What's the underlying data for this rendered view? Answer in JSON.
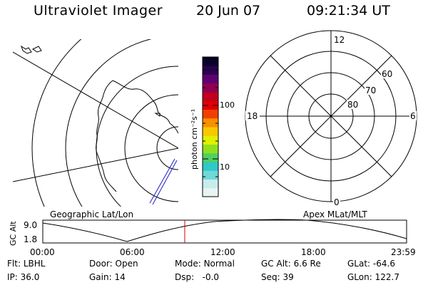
{
  "header": {
    "title": "Ultraviolet Imager",
    "date": "20 Jun 07",
    "time": "09:21:34 UT"
  },
  "left_panel": {
    "label": "Geographic Lat/Lon"
  },
  "colorbar": {
    "unit_label": "photon cm⁻²s⁻¹",
    "tick_labels": [
      "100",
      "10"
    ],
    "colors": [
      "#e8f4f4",
      "#c8ecec",
      "#70d8d8",
      "#30c8c8",
      "#50d060",
      "#90e020",
      "#e0f000",
      "#f8c800",
      "#f89000",
      "#f04000",
      "#e00000",
      "#c00020",
      "#900050",
      "#600070",
      "#2a0050",
      "#0a0028"
    ]
  },
  "right_panel": {
    "label": "Apex MLat/MLT",
    "mlt_labels": {
      "top": "12",
      "left": "18",
      "right": "6",
      "bottom": "0"
    },
    "mlat_labels": [
      "60",
      "70",
      "80"
    ]
  },
  "timeline": {
    "ylabel": "GC Alt",
    "ytick_labels": [
      "9.0",
      "1.8"
    ],
    "xtick_labels": [
      "00:00",
      "06:00",
      "12:00",
      "18:00",
      "23:59"
    ],
    "current_marker_time": "09:21"
  },
  "status": [
    {
      "key": "Flt:",
      "value": "LBHL"
    },
    {
      "key": "Door:",
      "value": "Open"
    },
    {
      "key": "Mode:",
      "value": "Normal"
    },
    {
      "key": "GC Alt:",
      "value": "6.6 Re"
    },
    {
      "key": "GLat:",
      "value": "-64.6"
    },
    {
      "key": "IP:",
      "value": "36.0"
    },
    {
      "key": "Gain:",
      "value": "14"
    },
    {
      "key": "Dsp:",
      "value": "  -0.0"
    },
    {
      "key": "Seq:",
      "value": "39"
    },
    {
      "key": "GLon:",
      "value": "122.7"
    }
  ]
}
